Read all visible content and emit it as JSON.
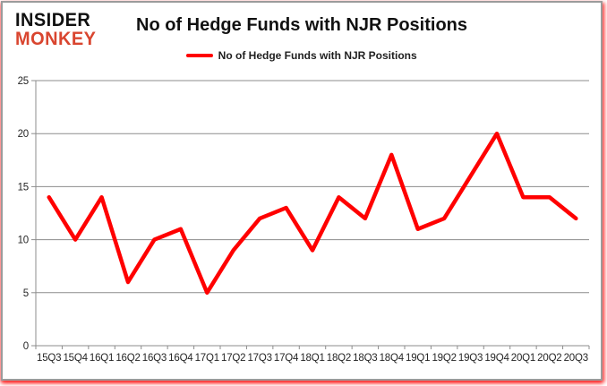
{
  "logo": {
    "line1": "INSIDER",
    "line2": "MONKEY",
    "color_top": "#101010",
    "color_bottom": "#d9452f"
  },
  "header": {
    "title": "No of Hedge Funds with NJR Positions"
  },
  "legend": {
    "label": "No of Hedge Funds with NJR Positions",
    "swatch_color": "#ff0000"
  },
  "colors": {
    "line": "#ff0000",
    "grid": "#8c8c8c",
    "axis": "#8c8c8c",
    "axis_text": "#262626",
    "card_border": "#9b9b9b",
    "glow": "#ff1919"
  },
  "chart_data": {
    "type": "line",
    "title": "No of Hedge Funds with NJR Positions",
    "xlabel": "",
    "ylabel": "",
    "categories": [
      "15Q3",
      "15Q4",
      "16Q1",
      "16Q2",
      "16Q3",
      "16Q4",
      "17Q1",
      "17Q2",
      "17Q3",
      "17Q4",
      "18Q1",
      "18Q2",
      "18Q3",
      "18Q4",
      "19Q1",
      "19Q2",
      "19Q3",
      "19Q4",
      "20Q1",
      "20Q2",
      "20Q3"
    ],
    "series": [
      {
        "name": "No of Hedge Funds with NJR Positions",
        "color": "#ff0000",
        "values": [
          14,
          10,
          14,
          6,
          10,
          11,
          5,
          9,
          12,
          13,
          9,
          14,
          12,
          18,
          11,
          12,
          16,
          20,
          14,
          14,
          12
        ]
      }
    ],
    "ylim": [
      0,
      25
    ],
    "yticks": [
      0,
      5,
      10,
      15,
      20,
      25
    ],
    "grid": "horizontal-only",
    "legend_position": "top-center"
  }
}
